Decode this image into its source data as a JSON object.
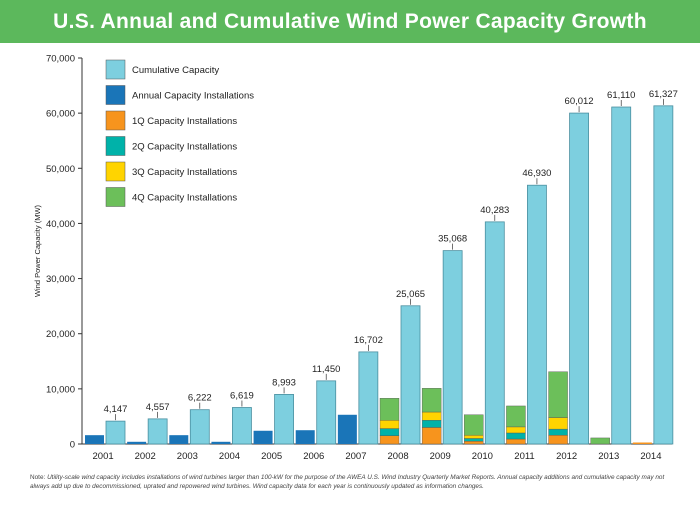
{
  "header": {
    "title": "U.S. Annual and Cumulative Wind Power Capacity Growth"
  },
  "colors": {
    "banner": "#5cb85c",
    "cumulative": "#7dcfdf",
    "annual": "#1a75b8",
    "q1": "#f7941d",
    "q2": "#00b2a9",
    "q3": "#ffd400",
    "q4": "#6cbf5a"
  },
  "chart_data": {
    "type": "bar",
    "ylabel": "Wind Power Capacity (MW)",
    "xlabel": "",
    "ylim": [
      0,
      70000
    ],
    "yticks": [
      0,
      10000,
      20000,
      30000,
      40000,
      50000,
      60000,
      70000
    ],
    "ytick_labels": [
      "0",
      "10,000",
      "20,000",
      "30,000",
      "40,000",
      "50,000",
      "60,000",
      "70,000"
    ],
    "categories": [
      "2001",
      "2002",
      "2003",
      "2004",
      "2005",
      "2006",
      "2007",
      "2008",
      "2009",
      "2010",
      "2011",
      "2012",
      "2013",
      "2014"
    ],
    "legend": {
      "placement": "top-left",
      "entries": [
        {
          "key": "cumulative",
          "label": "Cumulative Capacity"
        },
        {
          "key": "annual",
          "label": "Annual Capacity Installations"
        },
        {
          "key": "q1",
          "label": "1Q Capacity Installations"
        },
        {
          "key": "q2",
          "label": "2Q Capacity Installations"
        },
        {
          "key": "q3",
          "label": "3Q Capacity Installations"
        },
        {
          "key": "q4",
          "label": "4Q Capacity Installations"
        }
      ]
    },
    "series": [
      {
        "name": "Cumulative Capacity",
        "key": "cumulative",
        "values": [
          4147,
          4557,
          6222,
          6619,
          8993,
          11450,
          16702,
          25065,
          35068,
          40283,
          46930,
          60012,
          61110,
          61327
        ],
        "labels": [
          "4,147",
          "4,557",
          "6,222",
          "6,619",
          "8,993",
          "11,450",
          "16,702",
          "25,065",
          "35,068",
          "40,283",
          "46,930",
          "60,012",
          "61,110",
          "61,327"
        ]
      },
      {
        "name": "Annual Capacity Installations",
        "key": "annual",
        "values": [
          1600,
          400,
          1600,
          400,
          2400,
          2500,
          5300,
          null,
          null,
          null,
          null,
          null,
          null,
          null
        ]
      },
      {
        "name": "1Q Capacity Installations",
        "key": "q1",
        "values": [
          null,
          null,
          null,
          null,
          null,
          null,
          null,
          1500,
          3000,
          500,
          900,
          1600,
          0,
          0
        ]
      },
      {
        "name": "2Q Capacity Installations",
        "key": "q2",
        "values": [
          null,
          null,
          null,
          null,
          null,
          null,
          null,
          1300,
          1300,
          500,
          1100,
          1100,
          0,
          0
        ]
      },
      {
        "name": "3Q Capacity Installations",
        "key": "q3",
        "values": [
          null,
          null,
          null,
          null,
          null,
          null,
          null,
          1500,
          1500,
          600,
          1100,
          2100,
          0,
          0
        ]
      },
      {
        "name": "4Q Capacity Installations",
        "key": "q4",
        "values": [
          null,
          null,
          null,
          null,
          null,
          null,
          null,
          4000,
          4300,
          3700,
          3800,
          8300,
          1100,
          0
        ]
      }
    ]
  },
  "footnote": {
    "prefix": "Note: ",
    "text": "Utility-scale wind capacity includes installations of wind turbines larger than 100-kW for the purpose of the AWEA U.S. Wind Industry Quarterly Market Reports. Annual capacity additions and cumulative capacity may not always add up due to decommissioned, uprated and repowered wind turbines. Wind capacity data for each year is continuously updated as information changes."
  }
}
